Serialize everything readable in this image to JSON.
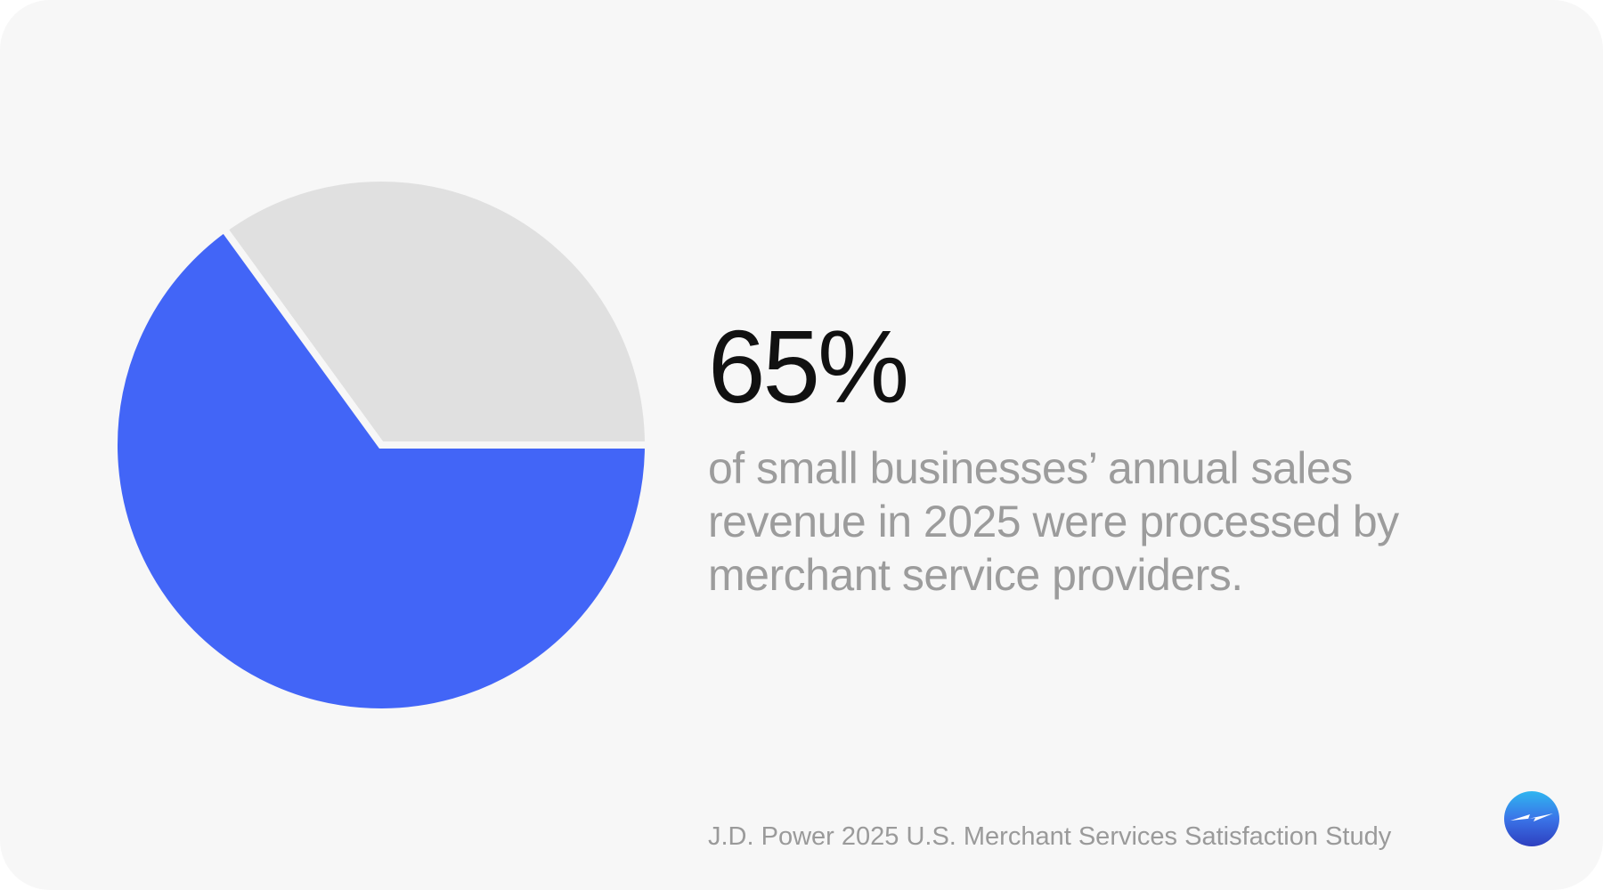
{
  "chart_data": {
    "type": "pie",
    "slices": [
      {
        "value": 65,
        "color": "#4265f7"
      },
      {
        "value": 35,
        "color": "#e0e0e0"
      }
    ]
  },
  "stat": {
    "value": "65%",
    "description_lines": [
      "of small businesses’ annual sales",
      "revenue in 2025 were processed by",
      "merchant service providers."
    ]
  },
  "source": "J.D. Power 2025 U.S. Merchant Services Satisfaction Study",
  "colors": {
    "background": "#f7f7f7",
    "accent": "#4265f7",
    "remainder": "#e0e0e0",
    "stat_text": "#111111",
    "muted_text": "#9c9c9c"
  },
  "logo": {
    "icon": "lightning-bolt-icon"
  }
}
